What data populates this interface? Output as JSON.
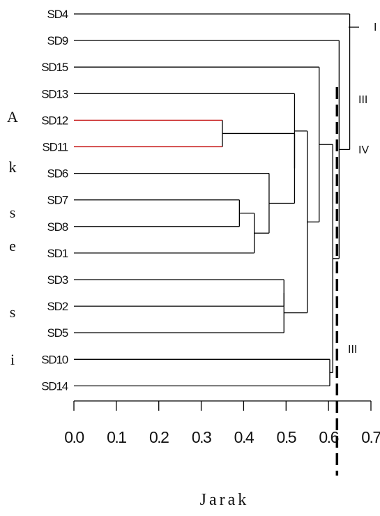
{
  "chart_data": {
    "type": "dendrogram",
    "orientation": "horizontal",
    "xlabel": "Jarak",
    "ylabel": "Aksesi",
    "xlim": [
      0.0,
      0.7
    ],
    "xticks": [
      "0.0",
      "0.1",
      "0.2",
      "0.3",
      "0.4",
      "0.5",
      "0.6",
      "0.7"
    ],
    "leaves": [
      "SD4",
      "SD9",
      "SD15",
      "SD13",
      "SD12",
      "SD11",
      "SD6",
      "SD7",
      "SD8",
      "SD1",
      "SD3",
      "SD2",
      "SD5",
      "SD10",
      "SD14"
    ],
    "merges": [
      {
        "id": "m1",
        "left": "SD12",
        "right": "SD11",
        "height": 0.35,
        "color": "#c00000"
      },
      {
        "id": "m2",
        "left": "SD7",
        "right": "SD8",
        "height": 0.39
      },
      {
        "id": "m3",
        "left": "m2",
        "right": "SD1",
        "height": 0.425
      },
      {
        "id": "m4",
        "left": "SD6",
        "right": "m3",
        "height": 0.46
      },
      {
        "id": "m5",
        "left": "SD3",
        "right": "SD2",
        "height": 0.495
      },
      {
        "id": "m6",
        "left": "m5",
        "right": "SD5",
        "height": 0.495
      },
      {
        "id": "m7",
        "left": "m1",
        "right": "m4",
        "height": 0.52
      },
      {
        "id": "m8",
        "left": "SD13",
        "right": "m7",
        "height": 0.52
      },
      {
        "id": "m9",
        "left": "m8",
        "right": "m6",
        "height": 0.55
      },
      {
        "id": "m10",
        "left": "SD15",
        "right": "m9",
        "height": 0.578
      },
      {
        "id": "m11",
        "left": "SD10",
        "right": "SD14",
        "height": 0.603
      },
      {
        "id": "m12",
        "left": "m10",
        "right": "m11",
        "height": 0.61
      },
      {
        "id": "m13",
        "left": "SD9",
        "right": "m12",
        "height": 0.625
      },
      {
        "id": "m14",
        "left": "SD4",
        "right": "m13",
        "height": 0.65
      }
    ],
    "cut_height": 0.62,
    "cut_style": "dashed",
    "cluster_labels": [
      {
        "label": "I",
        "near_leaf": "SD4"
      },
      {
        "label": "III",
        "near_leaf": "SD13"
      },
      {
        "label": "IV",
        "near_leaf": "SD11"
      },
      {
        "label": "III",
        "near_leaf": "SD10"
      }
    ]
  }
}
